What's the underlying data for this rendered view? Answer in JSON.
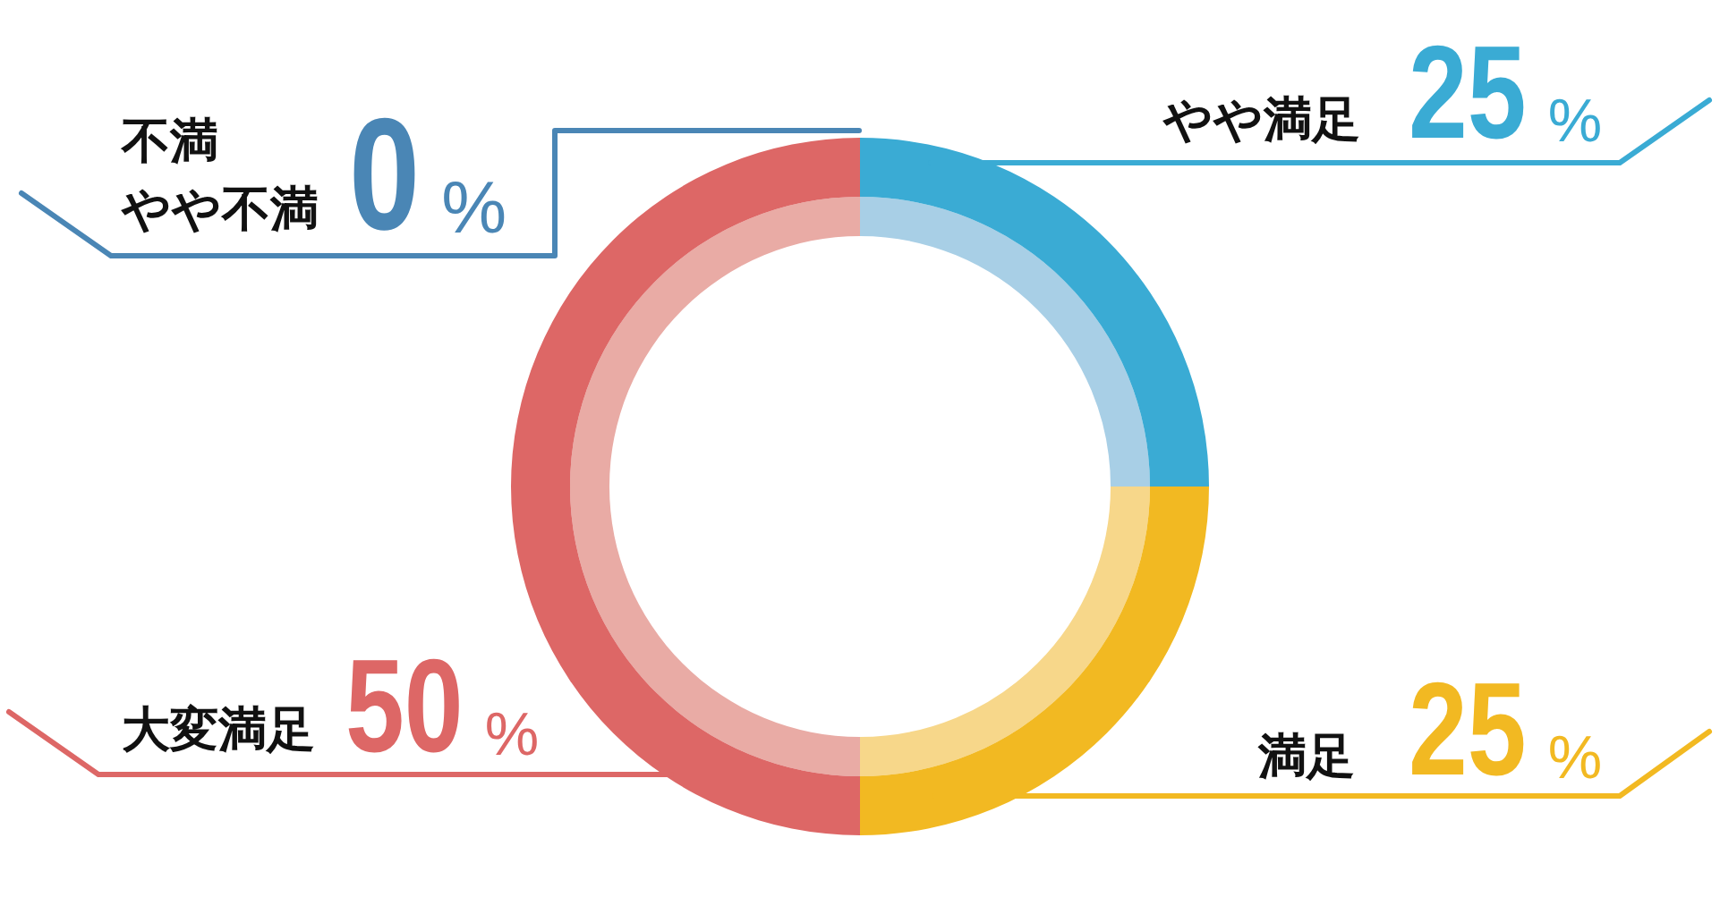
{
  "chart_data": {
    "type": "donut",
    "categories": [
      "やや満足",
      "満足",
      "大変満足",
      "不満やや不満"
    ],
    "series": [
      {
        "values": [
          25,
          25,
          50,
          0
        ],
        "colors": [
          "#3aabd4",
          "#f2b922",
          "#dd6766",
          "#4a86b5"
        ]
      },
      {
        "values": [
          25,
          25,
          50,
          0
        ],
        "colors": [
          "#a8cfe6",
          "#f7d78a",
          "#e9aba5",
          "#a4c2da"
        ]
      }
    ],
    "value_labels": [
      "25%",
      "25%",
      "50%",
      "0%"
    ]
  }
}
